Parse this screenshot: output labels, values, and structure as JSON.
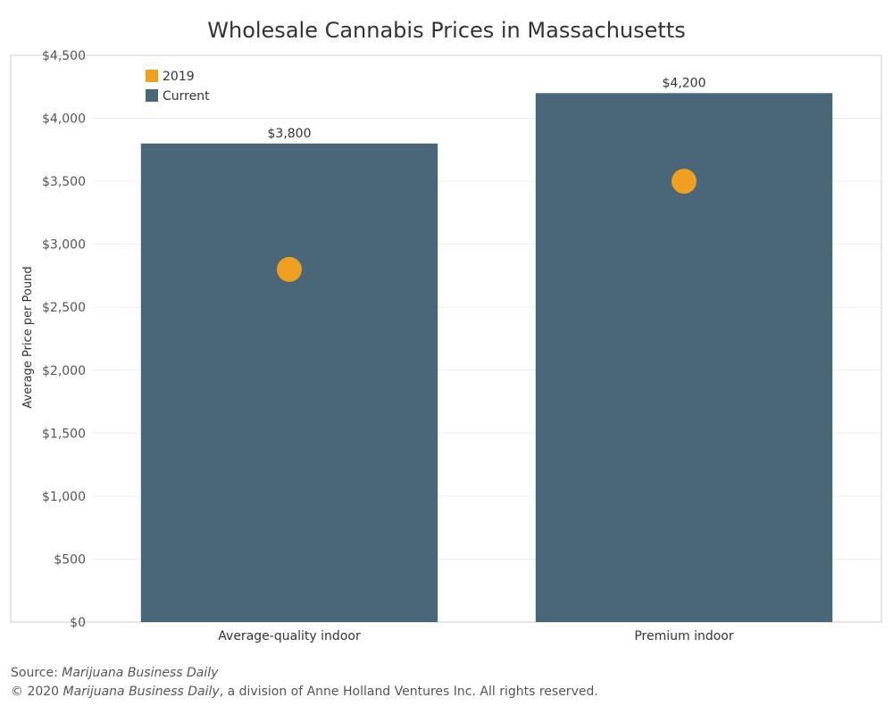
{
  "chart_data": {
    "type": "bar",
    "title": "Wholesale Cannabis Prices in Massachusetts",
    "ylabel": "Average Price per Pound",
    "xlabel": "",
    "categories": [
      "Average-quality indoor",
      "Premium indoor"
    ],
    "series": [
      {
        "name": "Current",
        "mark": "bar",
        "color": "#4a6679",
        "values": [
          3800,
          4200
        ],
        "labels": [
          "$3,800",
          "$4,200"
        ]
      },
      {
        "name": "2019",
        "mark": "circle",
        "color": "#f0a020",
        "values": [
          2800,
          3500
        ]
      }
    ],
    "ylim": [
      0,
      4500
    ],
    "yticks": [
      0,
      500,
      1000,
      1500,
      2000,
      2500,
      3000,
      3500,
      4000,
      4500
    ],
    "ytick_labels": [
      "$0",
      "$500",
      "$1,000",
      "$1,500",
      "$2,000",
      "$2,500",
      "$3,000",
      "$3,500",
      "$4,000",
      "$4,500"
    ],
    "grid": true,
    "legend_position": "top-left"
  },
  "footer": {
    "source_prefix": "Source: ",
    "source_name": "Marijuana Business Daily",
    "copyright_prefix": "© 2020 ",
    "copyright_name": "Marijuana Business Daily",
    "copyright_suffix": ", a division of Anne Holland Ventures Inc. All rights reserved."
  }
}
